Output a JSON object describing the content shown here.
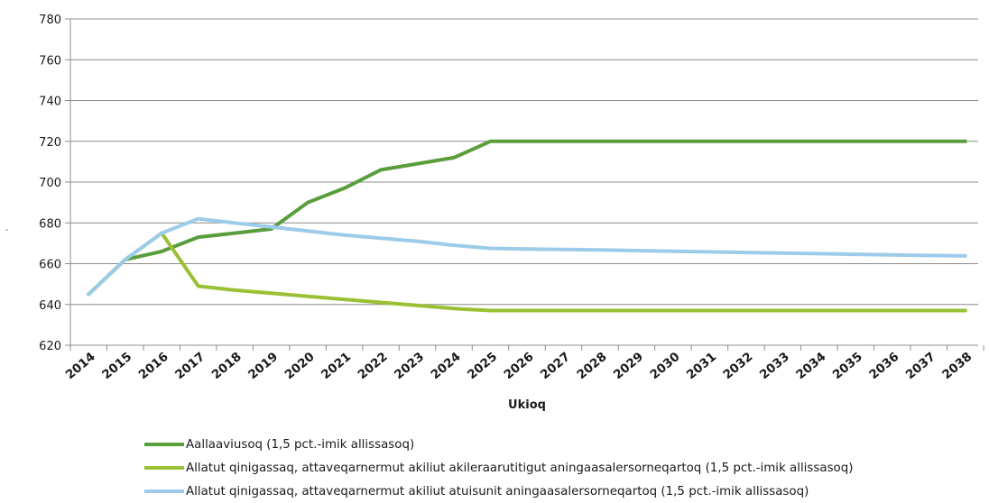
{
  "chart_data": {
    "type": "line",
    "title": "",
    "xlabel": "Ukioq",
    "ylabel": "",
    "ylim": [
      620,
      780
    ],
    "yticks": [
      620,
      640,
      660,
      680,
      700,
      720,
      740,
      760,
      780
    ],
    "grid": "horizontal",
    "legend_position": "bottom",
    "x": [
      "2014",
      "2015",
      "2016",
      "2017",
      "2018",
      "2019",
      "2020",
      "2021",
      "2022",
      "2023",
      "2024",
      "2025",
      "2026",
      "2027",
      "2028",
      "2029",
      "2030",
      "2031",
      "2032",
      "2033",
      "2034",
      "2035",
      "2036",
      "2037",
      "2038"
    ],
    "series": [
      {
        "name": "Aallaaviusoq (1,5 pct.-imik allissasoq)",
        "color": "#5a9e3c",
        "values": [
          645,
          662,
          666,
          673,
          675,
          677,
          690,
          697,
          706,
          709,
          712,
          720,
          720,
          720,
          720,
          720,
          720,
          720,
          720,
          720,
          720,
          720,
          720,
          720,
          720
        ]
      },
      {
        "name": "Allatut qinigassaq, attaveqarnermut akiliut akileraarutitigut aningaasalersorneqartoq (1,5 pct.-imik allissasoq)",
        "color": "#9ac034",
        "values": [
          645,
          662,
          675,
          649,
          647,
          645.5,
          644,
          642.5,
          641,
          639.5,
          638,
          637,
          637,
          637,
          637,
          637,
          637,
          637,
          637,
          637,
          637,
          637,
          637,
          637,
          637
        ]
      },
      {
        "name": "Allatut qinigassaq, attaveqarnermut akiliut atuisunit aningaasalersorneqartoq (1,5 pct.-imik allissasoq)",
        "color": "#9dcbea",
        "values": [
          645,
          662,
          675,
          682,
          680,
          678,
          676,
          674,
          672.5,
          671,
          669,
          667.5,
          667.2,
          667,
          666.7,
          666.4,
          666.1,
          665.8,
          665.5,
          665.2,
          664.9,
          664.6,
          664.3,
          664,
          663.8
        ]
      }
    ]
  }
}
